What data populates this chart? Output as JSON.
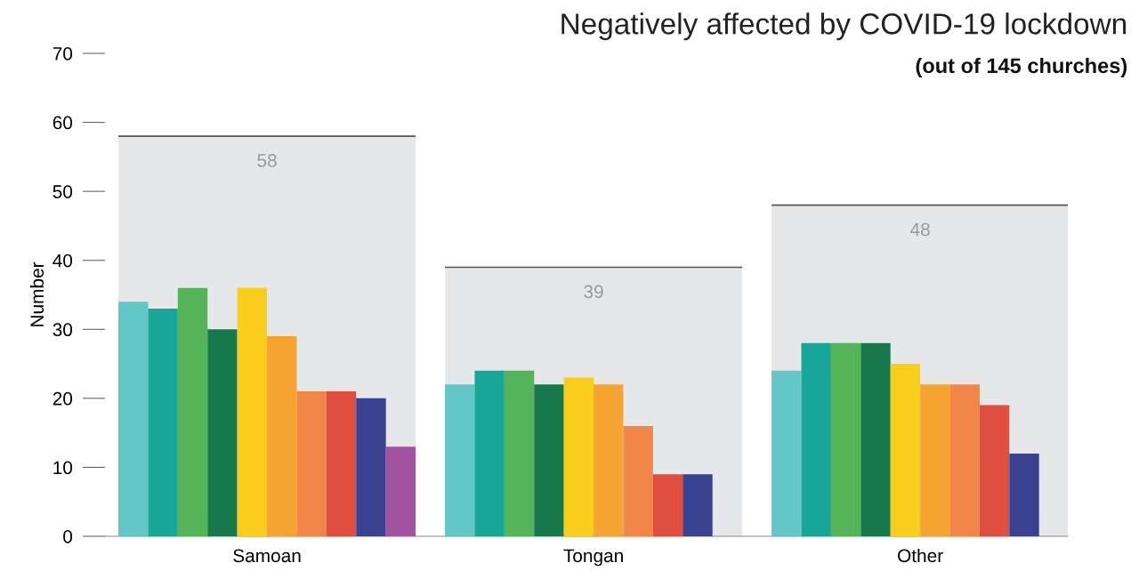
{
  "chart_data": {
    "type": "bar",
    "title": "Negatively affected by COVID-19 lockdown",
    "subtitle": "(out of 145 churches)",
    "ylabel": "Number",
    "categories": [
      "Samoan",
      "Tongan",
      "Other"
    ],
    "ylim": [
      0,
      70
    ],
    "yticks": [
      0,
      10,
      20,
      30,
      40,
      50,
      60,
      70
    ],
    "grid": false,
    "legend": false,
    "series": [
      {
        "type": "bar",
        "color": "#e6e7e9",
        "values": [
          58,
          39,
          48
        ],
        "value_labels": [
          "58",
          "39",
          "48"
        ]
      },
      {
        "color": "#63c7c8",
        "values": [
          34,
          22,
          24
        ]
      },
      {
        "color": "#17a697",
        "values": [
          33,
          24,
          28
        ]
      },
      {
        "color": "#55b45a",
        "values": [
          36,
          24,
          28
        ]
      },
      {
        "color": "#16784b",
        "values": [
          30,
          22,
          28
        ]
      },
      {
        "color": "#f9cd1c",
        "values": [
          36,
          23,
          25
        ]
      },
      {
        "color": "#f5a431",
        "values": [
          29,
          22,
          22
        ]
      },
      {
        "color": "#f08648",
        "values": [
          21,
          16,
          22
        ]
      },
      {
        "color": "#e04e3f",
        "values": [
          21,
          9,
          19
        ]
      },
      {
        "color": "#384291",
        "values": [
          20,
          9,
          12
        ]
      },
      {
        "color": "#a253a0",
        "values": [
          13,
          null,
          null
        ]
      }
    ]
  }
}
